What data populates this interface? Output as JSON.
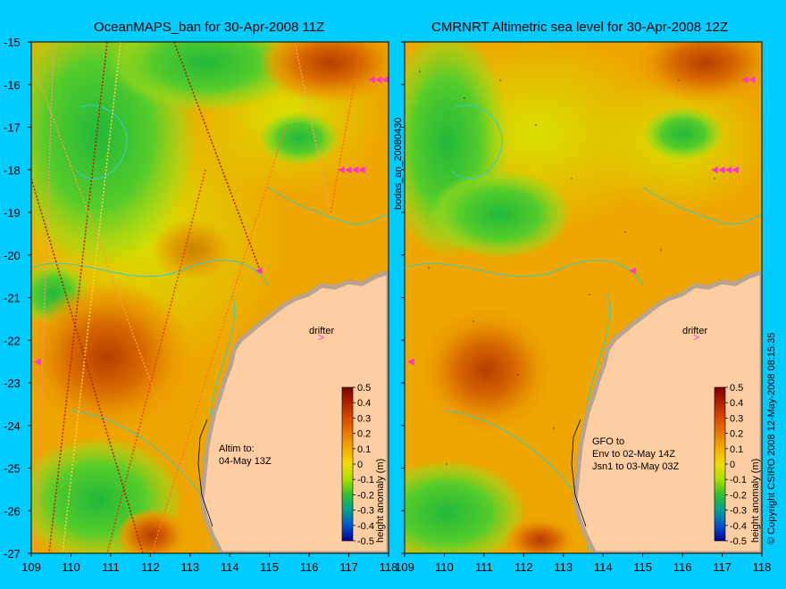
{
  "panels": [
    {
      "title": "OceanMAPS_ban for 30-Apr-2008 11Z",
      "note_lines": [
        "Altim to:",
        "04-May 13Z"
      ],
      "drifter_label": "drifter"
    },
    {
      "title": "CMRNRT Altimetric sea level  for 30-Apr-2008 12Z",
      "note_lines": [
        "GFO to",
        "Env to 02-May 14Z",
        "Jsn1 to 03-May 03Z"
      ],
      "drifter_label": "drifter"
    }
  ],
  "y_ticks": [
    "-15",
    "-16",
    "-17",
    "-18",
    "-19",
    "-20",
    "-21",
    "-22",
    "-23",
    "-24",
    "-25",
    "-26",
    "-27"
  ],
  "x_ticks": [
    "109",
    "110",
    "111",
    "112",
    "113",
    "114",
    "115",
    "116",
    "117",
    "118"
  ],
  "colorbar": {
    "label": "height anomaly (m)",
    "ticks": [
      "0.5",
      "0.4",
      "0.3",
      "0.2",
      "0.1",
      "0",
      "-0.1",
      "-0.2",
      "-0.3",
      "-0.4",
      "-0.5"
    ],
    "colors": [
      "#7a0000",
      "#b22000",
      "#d84a00",
      "#e87a00",
      "#f3ae00",
      "#f2dc00",
      "#a8e000",
      "#30c030",
      "#00a090",
      "#0055d0",
      "#000090"
    ]
  },
  "side_text": {
    "middle": "bodas_an_20080430",
    "right": "© Copyright CSIRO 2008  12-May-2008 08:15:35"
  },
  "colors": {
    "background": "#00ccff",
    "land": "#fecda1",
    "coast_strip": "#b7a38f",
    "bathymetry": "#33cccc",
    "marker": "#ff33cc"
  }
}
